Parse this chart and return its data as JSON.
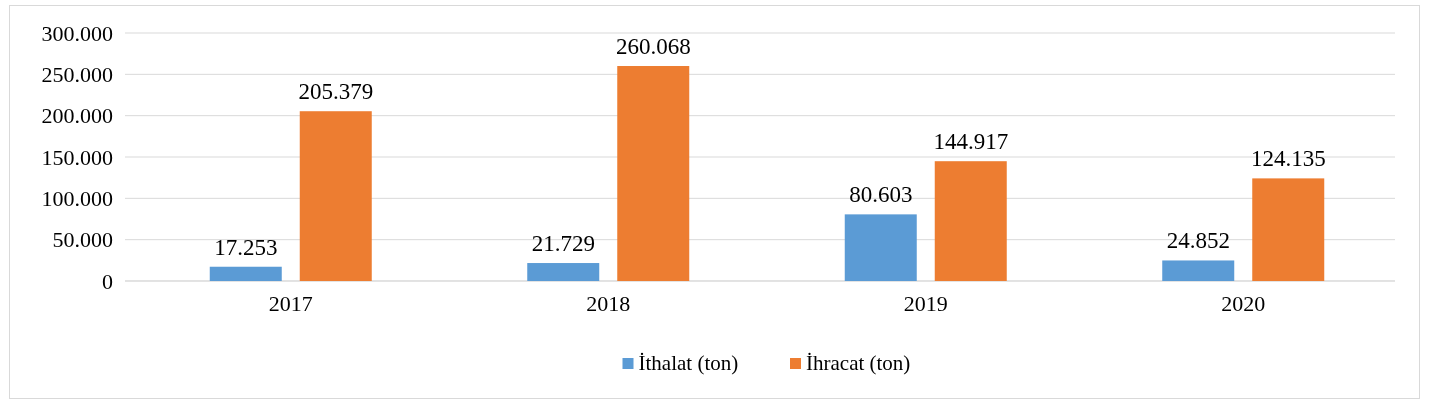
{
  "chart_data": {
    "type": "bar",
    "categories": [
      "2017",
      "2018",
      "2019",
      "2020"
    ],
    "series": [
      {
        "name": "İthalat (ton)",
        "color": "#5b9bd5",
        "values": [
          17253,
          21729,
          80603,
          24852
        ],
        "value_labels": [
          "17.253",
          "21.729",
          "80.603",
          "24.852"
        ]
      },
      {
        "name": "İhracat (ton)",
        "color": "#ed7d31",
        "values": [
          205379,
          260068,
          144917,
          124135
        ],
        "value_labels": [
          "205.379",
          "260.068",
          "144.917",
          "124.135"
        ]
      }
    ],
    "ylim": [
      0,
      300000
    ],
    "yticks": [
      {
        "value": 0,
        "label": "0"
      },
      {
        "value": 50000,
        "label": "50.000"
      },
      {
        "value": 100000,
        "label": "100.000"
      },
      {
        "value": 150000,
        "label": "150.000"
      },
      {
        "value": 200000,
        "label": "200.000"
      },
      {
        "value": 250000,
        "label": "250.000"
      },
      {
        "value": 300000,
        "label": "300.000"
      }
    ],
    "grid": "y",
    "legend": "bottom"
  }
}
